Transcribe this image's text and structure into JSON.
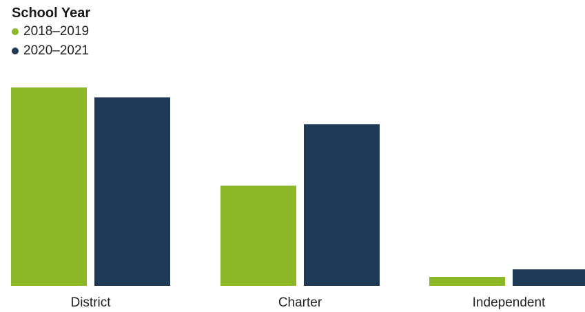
{
  "legend": {
    "title": "School Year",
    "items": [
      {
        "label": "2018–2019",
        "color": "#8cb828"
      },
      {
        "label": "2020–2021",
        "color": "#1f3a56"
      }
    ]
  },
  "chart_data": {
    "type": "bar",
    "title": "",
    "xlabel": "",
    "ylabel": "",
    "categories": [
      "District",
      "Charter",
      "Independent"
    ],
    "series": [
      {
        "name": "2018–2019",
        "color": "#8cb828",
        "values": [
          100,
          50.5,
          4.5
        ]
      },
      {
        "name": "2020–2021",
        "color": "#1f3a56",
        "values": [
          95,
          81.5,
          8.3
        ]
      }
    ],
    "ylim": [
      0,
      100
    ],
    "grid": false,
    "legend_position": "top-left"
  }
}
